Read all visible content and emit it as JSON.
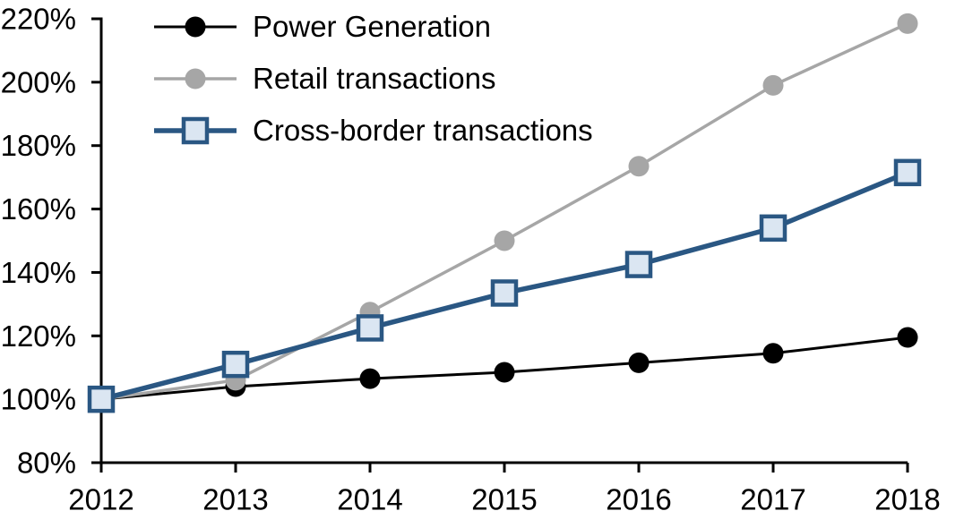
{
  "chart_data": {
    "type": "line",
    "title": "",
    "xlabel": "",
    "ylabel": "",
    "categories": [
      "2012",
      "2013",
      "2014",
      "2015",
      "2016",
      "2017",
      "2018"
    ],
    "series": [
      {
        "name": "Power Generation",
        "values": [
          100,
          104,
          106.5,
          108.5,
          111.5,
          114.5,
          119.5
        ],
        "line_color": "#000000",
        "marker": "circle",
        "marker_fill": "#000000"
      },
      {
        "name": "Retail transactions",
        "values": [
          100,
          106,
          127.5,
          150,
          173.5,
          199,
          218.5
        ],
        "line_color": "#a6a6a6",
        "marker": "circle",
        "marker_fill": "#a6a6a6"
      },
      {
        "name": "Cross-border transactions",
        "values": [
          100,
          111,
          122.5,
          133.5,
          142.5,
          154,
          171.5
        ],
        "line_color": "#2a5783",
        "marker": "square",
        "marker_fill": "#dbe6f2"
      }
    ],
    "ylim": [
      80,
      220
    ],
    "ytick_step": 20,
    "yticks": [
      {
        "value": 220,
        "label": "220%"
      },
      {
        "value": 200,
        "label": "200%"
      },
      {
        "value": 180,
        "label": "180%"
      },
      {
        "value": 160,
        "label": "160%"
      },
      {
        "value": 140,
        "label": "140%"
      },
      {
        "value": 120,
        "label": "120%"
      },
      {
        "value": 100,
        "label": "100%"
      },
      {
        "value": 80,
        "label": "80%"
      }
    ],
    "grid": false,
    "legend_position": "top-left",
    "axis_color": "#000000",
    "background": "#ffffff"
  }
}
